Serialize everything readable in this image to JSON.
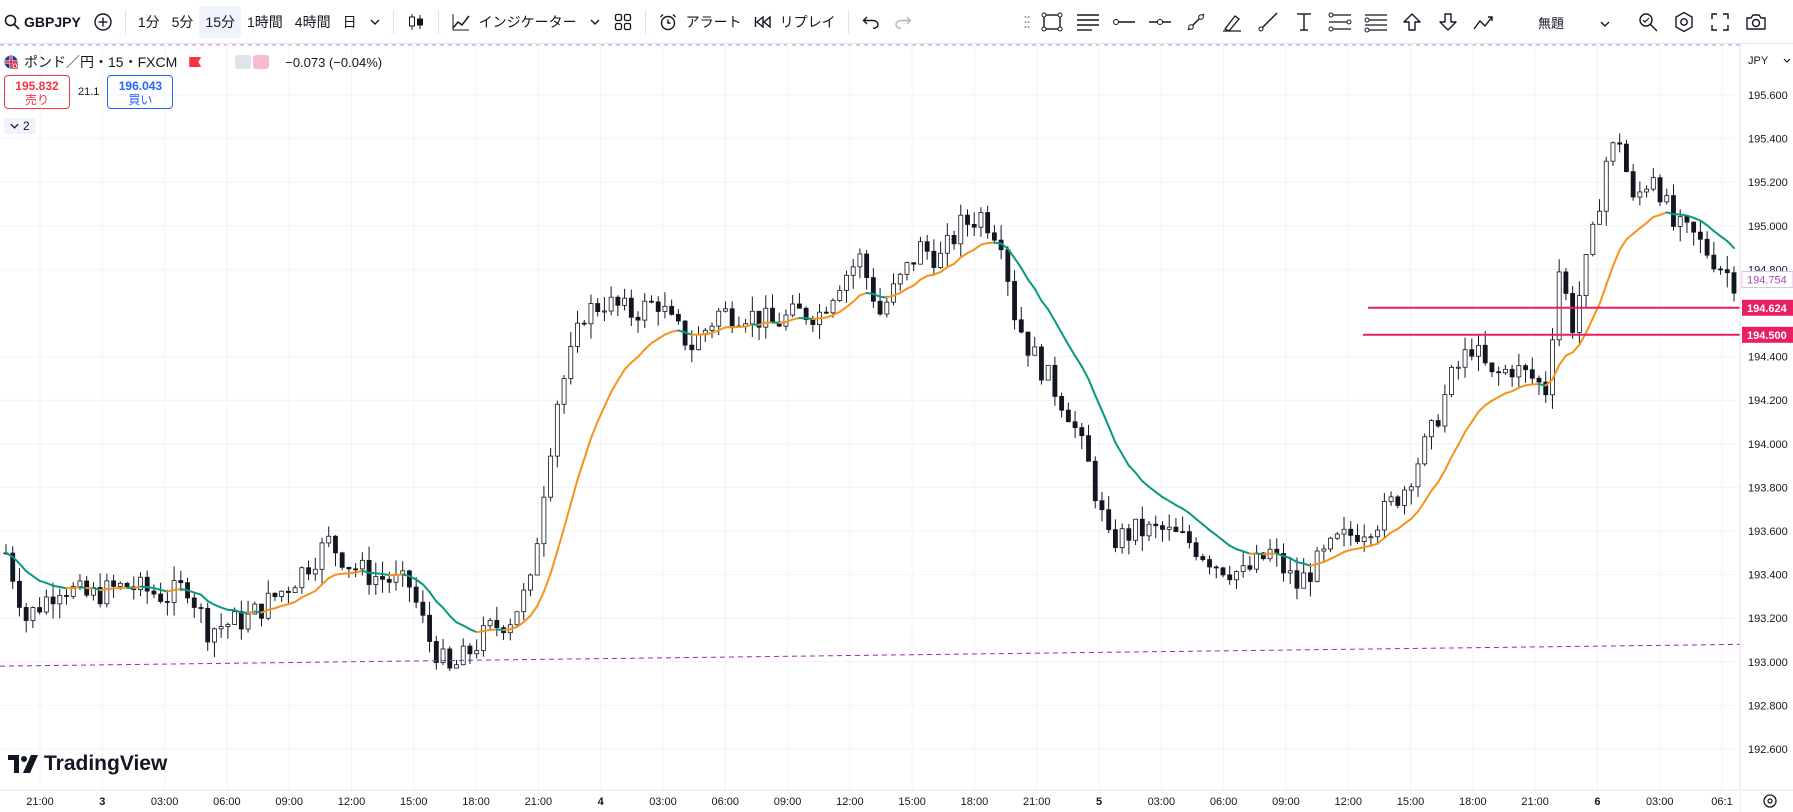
{
  "toolbar": {
    "symbol": "GBPJPY",
    "intervals": [
      {
        "label": "1分",
        "active": false
      },
      {
        "label": "5分",
        "active": false
      },
      {
        "label": "15分",
        "active": true
      },
      {
        "label": "1時間",
        "active": false
      },
      {
        "label": "4時間",
        "active": false
      },
      {
        "label": "日",
        "active": false
      }
    ],
    "indicators_label": "インジケーター",
    "alert_label": "アラート",
    "replay_label": "リプレイ"
  },
  "drawbar": {
    "tools": [
      "rectangle-icon",
      "parallel-lines-icon",
      "horizontal-ray-icon",
      "horizontal-line-icon",
      "trend-line-icon",
      "brush-icon",
      "ray-line-icon",
      "text-cursor-icon",
      "fib-retracement-icon",
      "fib-extension-icon",
      "arrow-up-icon",
      "arrow-down-icon",
      "path-icon"
    ],
    "template_label": "無題"
  },
  "legend": {
    "title": "ポンド／円・15・FXCM",
    "change": "−0.073 (−0.04%)",
    "sell_price": "195.832",
    "sell_label": "売り",
    "spread": "21.1",
    "buy_price": "196.043",
    "buy_label": "買い",
    "collapse_count": "2"
  },
  "price_axis": {
    "currency": "JPY",
    "ticks": [
      "195.600",
      "195.400",
      "195.200",
      "195.000",
      "194.800",
      "194.400",
      "194.200",
      "194.000",
      "193.800",
      "193.600",
      "193.400",
      "193.200",
      "193.000",
      "192.800",
      "192.600"
    ],
    "current_price": "194.754",
    "line_labels": [
      "194.624",
      "194.500"
    ]
  },
  "time_axis": {
    "ticks": [
      "21:00",
      "3",
      "03:00",
      "06:00",
      "09:00",
      "12:00",
      "15:00",
      "18:00",
      "21:00",
      "4",
      "03:00",
      "06:00",
      "09:00",
      "12:00",
      "15:00",
      "18:00",
      "21:00",
      "5",
      "03:00",
      "06:00",
      "09:00",
      "12:00",
      "15:00",
      "18:00",
      "21:00",
      "6",
      "03:00",
      "06:1"
    ]
  },
  "brand": "TradingView",
  "colors": {
    "up": "#131722",
    "down": "#131722",
    "ema_orange": "#f7931a",
    "ema_teal": "#089981",
    "hline": "#e91e63",
    "dashed": "#9c27b0"
  },
  "chart_data": {
    "type": "candlestick",
    "title": "ポンド／円・15・FXCM",
    "ylim": [
      192.5,
      195.75
    ],
    "horizontal_lines": [
      194.624,
      194.5
    ],
    "trend_line": {
      "from": 192.98,
      "to": 193.08
    },
    "close_path": [
      [
        0,
        193.5
      ],
      [
        3,
        193.2
      ],
      [
        8,
        193.35
      ],
      [
        12,
        193.3
      ],
      [
        18,
        193.35
      ],
      [
        24,
        193.3
      ],
      [
        27,
        193.35
      ],
      [
        30,
        193.15
      ],
      [
        36,
        193.2
      ],
      [
        42,
        193.35
      ],
      [
        48,
        193.55
      ],
      [
        51,
        193.45
      ],
      [
        54,
        193.4
      ],
      [
        60,
        193.35
      ],
      [
        63,
        193.1
      ],
      [
        66,
        192.95
      ],
      [
        69,
        193.05
      ],
      [
        72,
        193.15
      ],
      [
        75,
        193.2
      ],
      [
        78,
        193.35
      ],
      [
        80,
        193.8
      ],
      [
        82,
        194.2
      ],
      [
        84,
        194.4
      ],
      [
        86,
        194.6
      ],
      [
        89,
        194.65
      ],
      [
        93,
        194.6
      ],
      [
        97,
        194.65
      ],
      [
        99,
        194.55
      ],
      [
        102,
        194.45
      ],
      [
        106,
        194.6
      ],
      [
        110,
        194.6
      ],
      [
        114,
        194.55
      ],
      [
        118,
        194.6
      ],
      [
        121,
        194.6
      ],
      [
        124,
        194.75
      ],
      [
        127,
        194.85
      ],
      [
        130,
        194.6
      ],
      [
        133,
        194.75
      ],
      [
        136,
        194.9
      ],
      [
        139,
        194.85
      ],
      [
        142,
        195.0
      ],
      [
        145,
        195.05
      ],
      [
        148,
        194.95
      ],
      [
        150,
        194.6
      ],
      [
        152,
        194.45
      ],
      [
        155,
        194.3
      ],
      [
        158,
        194.15
      ],
      [
        161,
        193.9
      ],
      [
        164,
        193.55
      ],
      [
        168,
        193.6
      ],
      [
        172,
        193.6
      ],
      [
        176,
        193.55
      ],
      [
        180,
        193.45
      ],
      [
        184,
        193.4
      ],
      [
        188,
        193.5
      ],
      [
        192,
        193.35
      ],
      [
        195,
        193.45
      ],
      [
        198,
        193.55
      ],
      [
        201,
        193.6
      ],
      [
        204,
        193.65
      ],
      [
        208,
        193.8
      ],
      [
        212,
        194.05
      ],
      [
        215,
        194.3
      ],
      [
        218,
        194.45
      ],
      [
        221,
        194.3
      ],
      [
        224,
        194.35
      ],
      [
        227,
        194.3
      ],
      [
        229,
        194.25
      ],
      [
        231,
        194.8
      ],
      [
        233,
        194.55
      ],
      [
        236,
        194.95
      ],
      [
        238,
        195.3
      ],
      [
        240,
        195.4
      ],
      [
        242,
        195.1
      ],
      [
        245,
        195.25
      ],
      [
        248,
        195.0
      ],
      [
        251,
        194.95
      ],
      [
        254,
        194.85
      ],
      [
        257,
        194.75
      ]
    ]
  }
}
